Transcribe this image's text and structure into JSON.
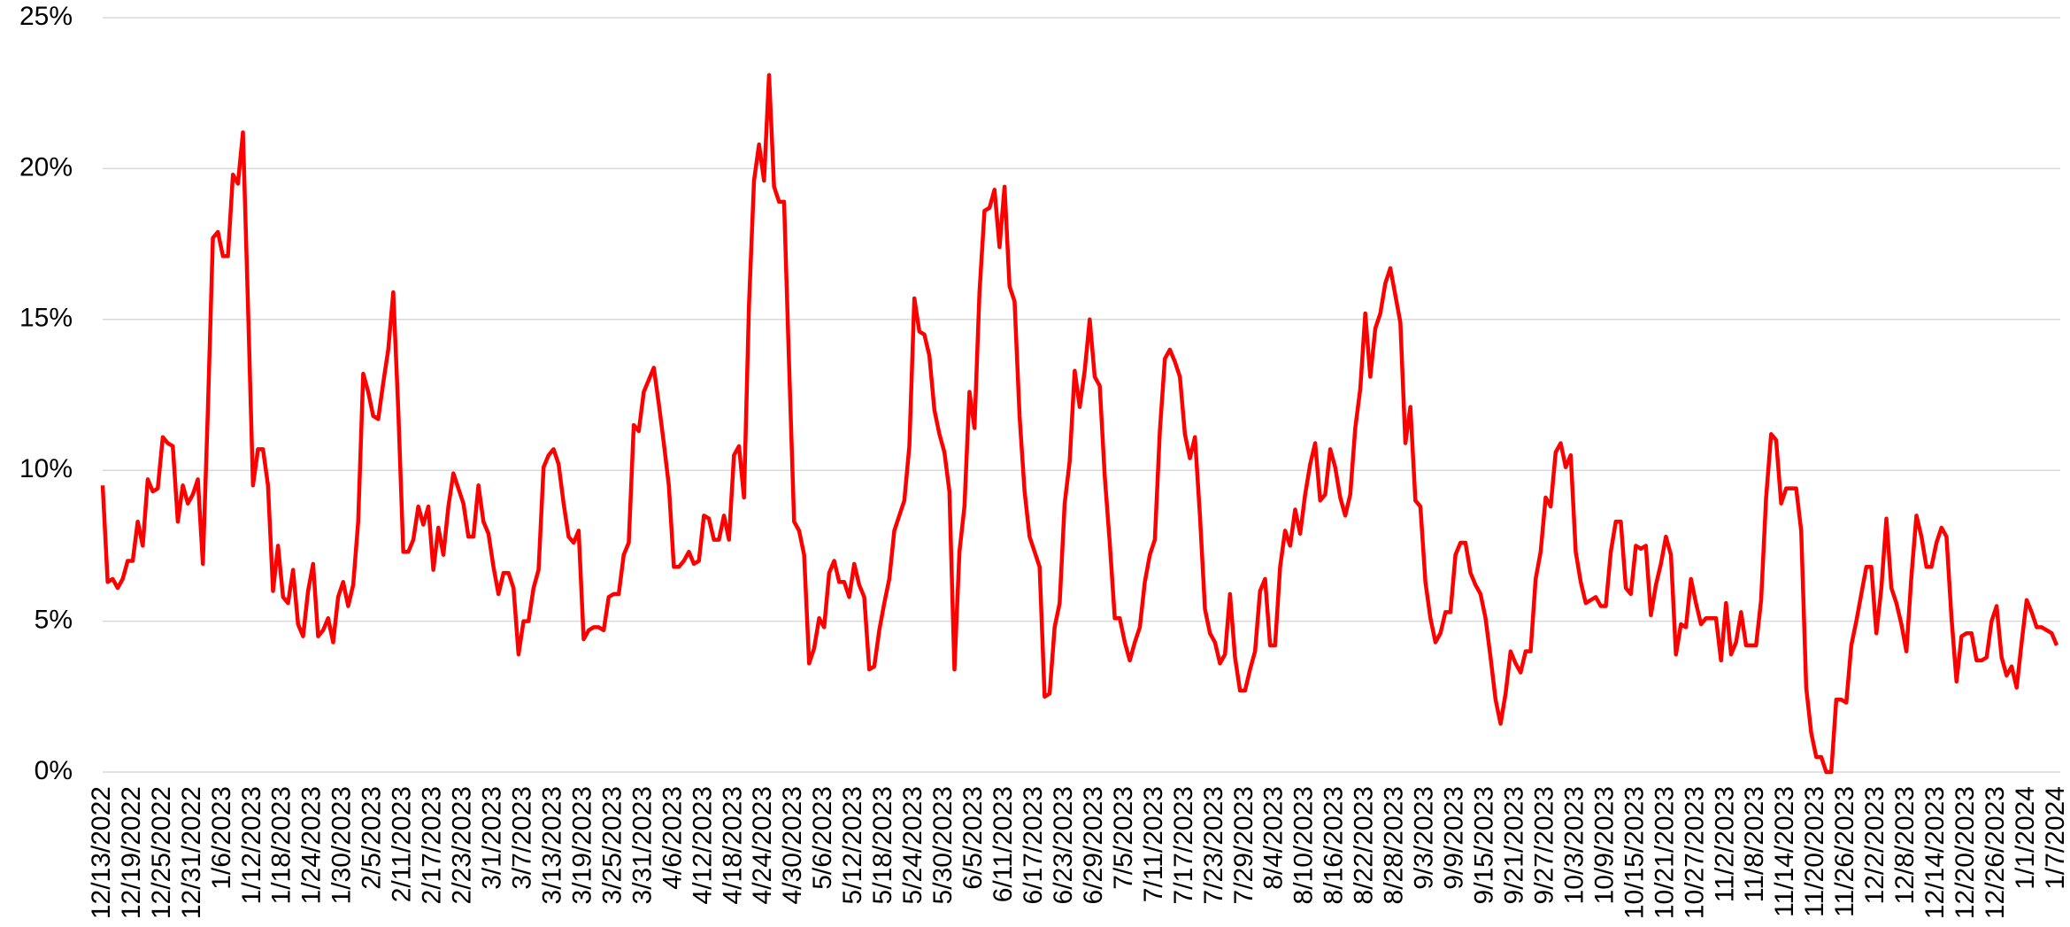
{
  "chart_data": {
    "type": "line",
    "color": "#ff0000",
    "grid": true,
    "ylim": [
      0,
      25
    ],
    "yticks": [
      {
        "value": 0,
        "label": "0%"
      },
      {
        "value": 5,
        "label": "5%"
      },
      {
        "value": 10,
        "label": "10%"
      },
      {
        "value": 15,
        "label": "15%"
      },
      {
        "value": 20,
        "label": "20%"
      },
      {
        "value": 25,
        "label": "25%"
      }
    ],
    "categories": [
      "12/13/2022",
      null,
      null,
      null,
      null,
      null,
      "12/19/2022",
      null,
      null,
      null,
      null,
      null,
      "12/25/2022",
      null,
      null,
      null,
      null,
      null,
      "12/31/2022",
      null,
      null,
      null,
      null,
      null,
      "1/6/2023",
      null,
      null,
      null,
      null,
      null,
      "1/12/2023",
      null,
      null,
      null,
      null,
      null,
      "1/18/2023",
      null,
      null,
      null,
      null,
      null,
      "1/24/2023",
      null,
      null,
      null,
      null,
      null,
      "1/30/2023",
      null,
      null,
      null,
      null,
      null,
      "2/5/2023",
      null,
      null,
      null,
      null,
      null,
      "2/11/2023",
      null,
      null,
      null,
      null,
      null,
      "2/17/2023",
      null,
      null,
      null,
      null,
      null,
      "2/23/2023",
      null,
      null,
      null,
      null,
      null,
      "3/1/2023",
      null,
      null,
      null,
      null,
      null,
      "3/7/2023",
      null,
      null,
      null,
      null,
      null,
      "3/13/2023",
      null,
      null,
      null,
      null,
      null,
      "3/19/2023",
      null,
      null,
      null,
      null,
      null,
      "3/25/2023",
      null,
      null,
      null,
      null,
      null,
      "3/31/2023",
      null,
      null,
      null,
      null,
      null,
      "4/6/2023",
      null,
      null,
      null,
      null,
      null,
      "4/12/2023",
      null,
      null,
      null,
      null,
      null,
      "4/18/2023",
      null,
      null,
      null,
      null,
      null,
      "4/24/2023",
      null,
      null,
      null,
      null,
      null,
      "4/30/2023",
      null,
      null,
      null,
      null,
      null,
      "5/6/2023",
      null,
      null,
      null,
      null,
      null,
      "5/12/2023",
      null,
      null,
      null,
      null,
      null,
      "5/18/2023",
      null,
      null,
      null,
      null,
      null,
      "5/24/2023",
      null,
      null,
      null,
      null,
      null,
      "5/30/2023",
      null,
      null,
      null,
      null,
      null,
      "6/5/2023",
      null,
      null,
      null,
      null,
      null,
      "6/11/2023",
      null,
      null,
      null,
      null,
      null,
      "6/17/2023",
      null,
      null,
      null,
      null,
      null,
      "6/23/2023",
      null,
      null,
      null,
      null,
      null,
      "6/29/2023",
      null,
      null,
      null,
      null,
      null,
      "7/5/2023",
      null,
      null,
      null,
      null,
      null,
      "7/11/2023",
      null,
      null,
      null,
      null,
      null,
      "7/17/2023",
      null,
      null,
      null,
      null,
      null,
      "7/23/2023",
      null,
      null,
      null,
      null,
      null,
      "7/29/2023",
      null,
      null,
      null,
      null,
      null,
      "8/4/2023",
      null,
      null,
      null,
      null,
      null,
      "8/10/2023",
      null,
      null,
      null,
      null,
      null,
      "8/16/2023",
      null,
      null,
      null,
      null,
      null,
      "8/22/2023",
      null,
      null,
      null,
      null,
      null,
      "8/28/2023",
      null,
      null,
      null,
      null,
      null,
      "9/3/2023",
      null,
      null,
      null,
      null,
      null,
      "9/9/2023",
      null,
      null,
      null,
      null,
      null,
      "9/15/2023",
      null,
      null,
      null,
      null,
      null,
      "9/21/2023",
      null,
      null,
      null,
      null,
      null,
      "9/27/2023",
      null,
      null,
      null,
      null,
      null,
      "10/3/2023",
      null,
      null,
      null,
      null,
      null,
      "10/9/2023",
      null,
      null,
      null,
      null,
      null,
      "10/15/2023",
      null,
      null,
      null,
      null,
      null,
      "10/21/2023",
      null,
      null,
      null,
      null,
      null,
      "10/27/2023",
      null,
      null,
      null,
      null,
      null,
      "11/2/2023",
      null,
      null,
      null,
      null,
      null,
      "11/8/2023",
      null,
      null,
      null,
      null,
      null,
      "11/14/2023",
      null,
      null,
      null,
      null,
      null,
      "11/20/2023",
      null,
      null,
      null,
      null,
      null,
      "11/26/2023",
      null,
      null,
      null,
      null,
      null,
      "12/2/2023",
      null,
      null,
      null,
      null,
      null,
      "12/8/2023",
      null,
      null,
      null,
      null,
      null,
      "12/14/2023",
      null,
      null,
      null,
      null,
      null,
      "12/20/2023",
      null,
      null,
      null,
      null,
      null,
      "12/26/2023",
      null,
      null,
      null,
      null,
      null,
      "1/1/2024",
      null,
      null,
      null,
      null,
      null,
      "1/7/2024"
    ],
    "values": [
      9.5,
      6.3,
      6.4,
      6.1,
      6.4,
      7.0,
      7.0,
      8.3,
      7.5,
      9.7,
      9.3,
      9.4,
      11.1,
      10.9,
      10.8,
      8.3,
      9.5,
      8.9,
      9.2,
      9.7,
      6.9,
      12.0,
      17.7,
      17.9,
      17.1,
      17.1,
      19.8,
      19.5,
      21.2,
      15.5,
      9.5,
      10.7,
      10.7,
      9.5,
      6.0,
      7.5,
      5.8,
      5.6,
      6.7,
      4.9,
      4.5,
      6.0,
      6.9,
      4.5,
      4.7,
      5.1,
      4.3,
      5.8,
      6.3,
      5.5,
      6.2,
      8.3,
      13.2,
      12.6,
      11.8,
      11.7,
      12.9,
      14.0,
      15.9,
      12.0,
      7.3,
      7.3,
      7.7,
      8.8,
      8.2,
      8.8,
      6.7,
      8.1,
      7.2,
      8.8,
      9.9,
      9.4,
      8.9,
      7.8,
      7.8,
      9.5,
      8.3,
      7.9,
      6.8,
      5.9,
      6.6,
      6.6,
      6.1,
      3.9,
      5.0,
      5.0,
      6.1,
      6.7,
      10.1,
      10.5,
      10.7,
      10.2,
      8.9,
      7.8,
      7.6,
      8.0,
      4.4,
      4.7,
      4.8,
      4.8,
      4.7,
      5.8,
      5.9,
      5.9,
      7.2,
      7.6,
      11.5,
      11.3,
      12.6,
      13.0,
      13.4,
      12.2,
      10.9,
      9.5,
      6.8,
      6.8,
      7.0,
      7.3,
      6.9,
      7.0,
      8.5,
      8.4,
      7.7,
      7.7,
      8.5,
      7.7,
      10.5,
      10.8,
      9.1,
      15.5,
      19.6,
      20.8,
      19.6,
      23.1,
      19.4,
      18.9,
      18.9,
      13.5,
      8.3,
      8.0,
      7.2,
      3.6,
      4.1,
      5.1,
      4.8,
      6.6,
      7.0,
      6.3,
      6.3,
      5.8,
      6.9,
      6.2,
      5.8,
      3.4,
      3.5,
      4.7,
      5.6,
      6.4,
      8.0,
      8.5,
      9.0,
      10.8,
      15.7,
      14.6,
      14.5,
      13.8,
      12.0,
      11.2,
      10.6,
      9.3,
      3.4,
      7.3,
      8.8,
      12.6,
      11.4,
      15.9,
      18.6,
      18.7,
      19.3,
      17.4,
      19.4,
      16.1,
      15.6,
      11.8,
      9.3,
      7.8,
      7.3,
      6.8,
      2.5,
      2.6,
      4.8,
      5.6,
      8.9,
      10.3,
      13.3,
      12.1,
      13.3,
      15.0,
      13.1,
      12.8,
      9.8,
      7.6,
      5.1,
      5.1,
      4.3,
      3.7,
      4.3,
      4.8,
      6.3,
      7.2,
      7.7,
      11.3,
      13.7,
      14.0,
      13.6,
      13.1,
      11.2,
      10.4,
      11.1,
      8.5,
      5.4,
      4.6,
      4.3,
      3.6,
      3.9,
      5.9,
      3.8,
      2.7,
      2.7,
      3.4,
      4.0,
      6.0,
      6.4,
      4.2,
      4.2,
      6.8,
      8.0,
      7.5,
      8.7,
      7.9,
      9.2,
      10.2,
      10.9,
      9.0,
      9.2,
      10.7,
      10.1,
      9.1,
      8.5,
      9.2,
      11.4,
      12.7,
      15.2,
      13.1,
      14.7,
      15.2,
      16.2,
      16.7,
      15.8,
      14.9,
      10.9,
      12.1,
      9.0,
      8.8,
      6.3,
      5.1,
      4.3,
      4.6,
      5.3,
      5.3,
      7.2,
      7.6,
      7.6,
      6.6,
      6.2,
      5.9,
      5.1,
      3.8,
      2.4,
      1.6,
      2.6,
      4.0,
      3.6,
      3.3,
      4.0,
      4.0,
      6.4,
      7.3,
      9.1,
      8.8,
      10.6,
      10.9,
      10.1,
      10.5,
      7.3,
      6.3,
      5.6,
      5.7,
      5.8,
      5.5,
      5.5,
      7.3,
      8.3,
      8.3,
      6.1,
      5.9,
      7.5,
      7.4,
      7.5,
      5.2,
      6.2,
      6.9,
      7.8,
      7.2,
      3.9,
      4.9,
      4.8,
      6.4,
      5.6,
      4.9,
      5.1,
      5.1,
      5.1,
      3.7,
      5.6,
      3.9,
      4.3,
      5.3,
      4.2,
      4.2,
      4.2,
      5.7,
      9.1,
      11.2,
      11.0,
      8.9,
      9.4,
      9.4,
      9.4,
      8.0,
      2.8,
      1.3,
      0.5,
      0.5,
      0.0,
      0.0,
      2.4,
      2.4,
      2.3,
      4.2,
      5.0,
      5.9,
      6.8,
      6.8,
      4.6,
      6.1,
      8.4,
      6.1,
      5.6,
      4.9,
      4.0,
      6.5,
      8.5,
      7.8,
      6.8,
      6.8,
      7.6,
      8.1,
      7.8,
      5.1,
      3.0,
      4.5,
      4.6,
      4.6,
      3.7,
      3.7,
      3.8,
      5.0,
      5.5,
      3.8,
      3.2,
      3.5,
      2.8,
      4.3,
      5.7,
      5.3,
      4.8,
      4.8,
      4.7,
      4.6,
      4.2
    ]
  }
}
